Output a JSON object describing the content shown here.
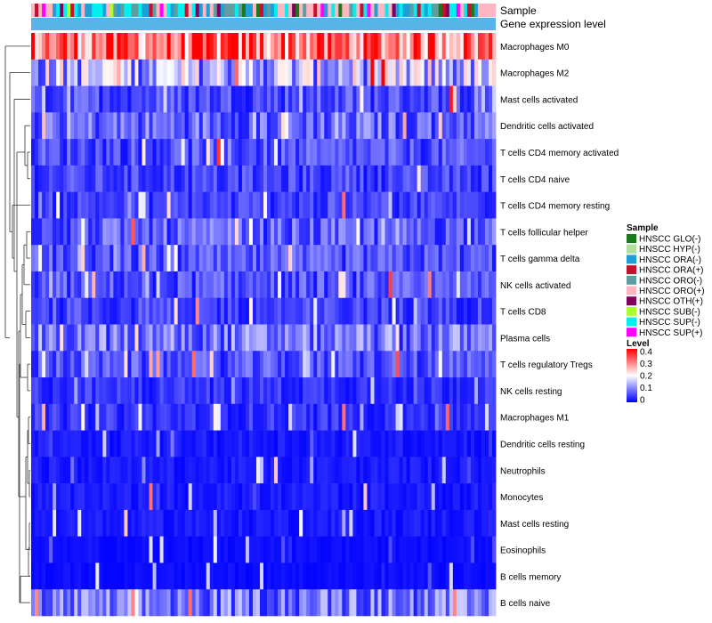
{
  "chart_data": {
    "type": "heatmap",
    "annotation_labels": [
      "Sample",
      "Gene expression level"
    ],
    "rows": [
      {
        "name": "Macrophages M0",
        "mean": 0.3
      },
      {
        "name": "Macrophages M2",
        "mean": 0.14
      },
      {
        "name": "Mast cells activated",
        "mean": 0.06
      },
      {
        "name": "Dendritic cells activated",
        "mean": 0.08
      },
      {
        "name": "T cells CD4 memory activated",
        "mean": 0.06
      },
      {
        "name": "T cells CD4 naive",
        "mean": 0.05
      },
      {
        "name": "T cells CD4 memory resting",
        "mean": 0.05
      },
      {
        "name": "T cells follicular helper",
        "mean": 0.07
      },
      {
        "name": "T cells gamma delta",
        "mean": 0.06
      },
      {
        "name": "NK cells activated",
        "mean": 0.06
      },
      {
        "name": "T cells CD8",
        "mean": 0.05
      },
      {
        "name": "Plasma cells",
        "mean": 0.09
      },
      {
        "name": "T cells regulatory  Tregs",
        "mean": 0.06
      },
      {
        "name": "NK cells resting",
        "mean": 0.04
      },
      {
        "name": "Macrophages M1",
        "mean": 0.04
      },
      {
        "name": "Dendritic cells resting",
        "mean": 0.02
      },
      {
        "name": "Neutrophils",
        "mean": 0.02
      },
      {
        "name": "Monocytes",
        "mean": 0.02
      },
      {
        "name": "Mast cells resting",
        "mean": 0.02
      },
      {
        "name": "Eosinophils",
        "mean": 0.01
      },
      {
        "name": "B cells memory",
        "mean": 0.01
      },
      {
        "name": "B cells naive",
        "mean": 0.09
      }
    ],
    "n_samples": 130,
    "color_scale": {
      "min": 0,
      "max": 0.4,
      "low": "#0000ff",
      "mid": "#ffffff",
      "high": "#ff0000"
    },
    "legend_sample": {
      "title": "Sample",
      "entries": [
        {
          "label": "HNSCC GLO(-)",
          "color": "#1a7a1a"
        },
        {
          "label": "HNSCC HYP(-)",
          "color": "#b0e0a0"
        },
        {
          "label": "HNSCC ORA(-)",
          "color": "#1f9fd8"
        },
        {
          "label": "HNSCC ORA(+)",
          "color": "#c8102e"
        },
        {
          "label": "HNSCC ORO(-)",
          "color": "#5f9ea0"
        },
        {
          "label": "HNSCC ORO(+)",
          "color": "#ffb6c1"
        },
        {
          "label": "HNSCC OTH(+)",
          "color": "#800060"
        },
        {
          "label": "HNSCC SUB(-)",
          "color": "#adff2f"
        },
        {
          "label": "HNSCC SUP(-)",
          "color": "#00f0f0"
        },
        {
          "label": "HNSCC SUP(+)",
          "color": "#ff00ff"
        }
      ]
    },
    "legend_level": {
      "title": "Level",
      "ticks": [
        "0.4",
        "0.3",
        "0.2",
        "0.1",
        "0"
      ]
    },
    "gene_expression_color": "#56b4e9"
  }
}
